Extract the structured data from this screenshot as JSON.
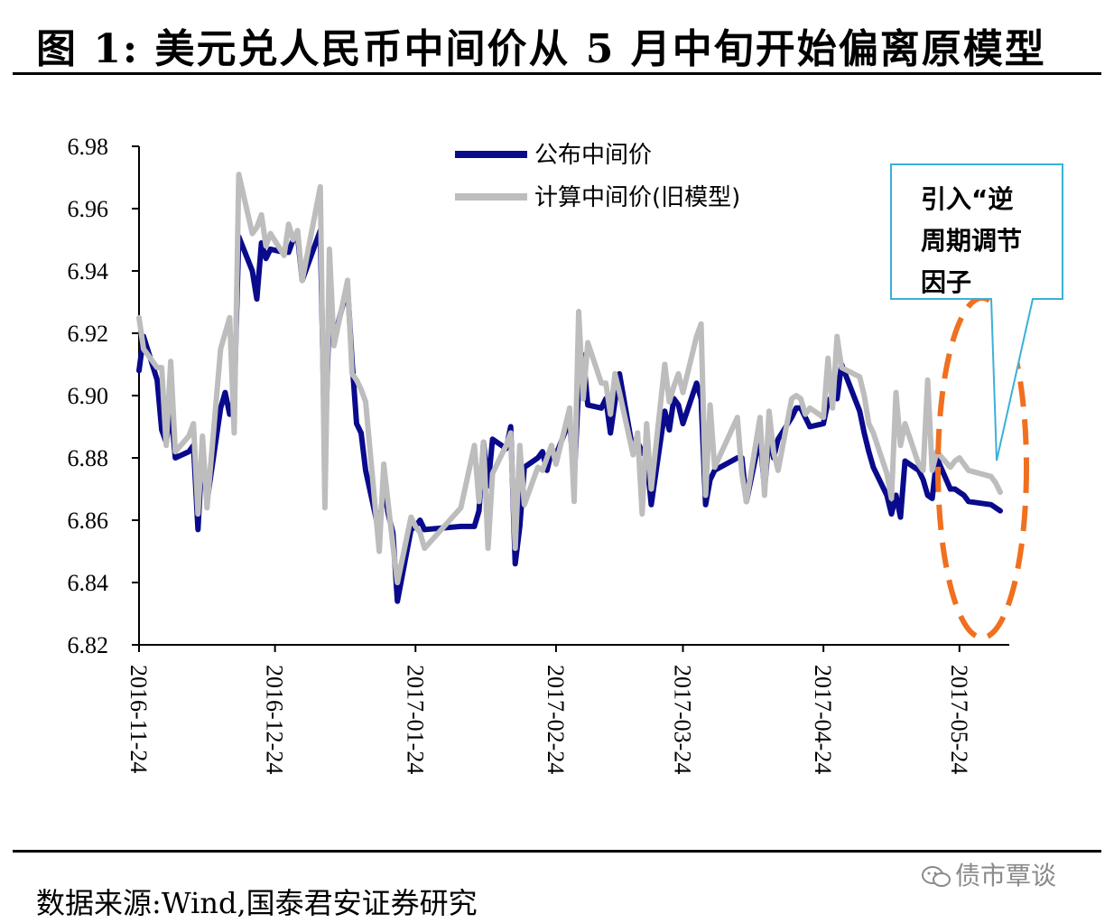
{
  "title": "图 1: 美元兑人民币中间价从 5 月中旬开始偏离原模型",
  "source": "数据来源:Wind,国泰君安证券研究",
  "watermark": "债市覃谈",
  "chart_data": {
    "type": "line",
    "ylim": [
      6.82,
      6.98
    ],
    "yticks": [
      "6.82",
      "6.84",
      "6.86",
      "6.88",
      "6.90",
      "6.92",
      "6.94",
      "6.96",
      "6.98"
    ],
    "xlim": [
      "2016-11-24",
      "2017-06-04"
    ],
    "xticks": [
      "2016-11-24",
      "2016-12-24",
      "2017-01-24",
      "2017-02-24",
      "2017-03-24",
      "2017-04-24",
      "2017-05-24"
    ],
    "legend_position": "top-center",
    "grid": false,
    "annotation": {
      "lines": [
        "引入“逆",
        "周期调节",
        "因子"
      ],
      "box_color": "#3BB0D8",
      "ellipse_color": "#F07020"
    },
    "series": [
      {
        "name": "公布中间价",
        "color": "#0A0A8C",
        "x": [
          "2016-11-24",
          "2016-11-25",
          "2016-11-28",
          "2016-11-29",
          "2016-11-30",
          "2016-12-01",
          "2016-12-02",
          "2016-12-05",
          "2016-12-06",
          "2016-12-07",
          "2016-12-08",
          "2016-12-09",
          "2016-12-12",
          "2016-12-13",
          "2016-12-14",
          "2016-12-15",
          "2016-12-16",
          "2016-12-19",
          "2016-12-20",
          "2016-12-21",
          "2016-12-22",
          "2016-12-23",
          "2016-12-26",
          "2016-12-27",
          "2016-12-28",
          "2016-12-29",
          "2016-12-30",
          "2017-01-03",
          "2017-01-04",
          "2017-01-05",
          "2017-01-06",
          "2017-01-09",
          "2017-01-10",
          "2017-01-11",
          "2017-01-12",
          "2017-01-13",
          "2017-01-16",
          "2017-01-17",
          "2017-01-18",
          "2017-01-19",
          "2017-01-20",
          "2017-01-23",
          "2017-01-24",
          "2017-01-25",
          "2017-01-26",
          "2017-02-03",
          "2017-02-06",
          "2017-02-07",
          "2017-02-08",
          "2017-02-09",
          "2017-02-10",
          "2017-02-13",
          "2017-02-14",
          "2017-02-15",
          "2017-02-16",
          "2017-02-17",
          "2017-02-20",
          "2017-02-21",
          "2017-02-22",
          "2017-02-23",
          "2017-02-24",
          "2017-02-27",
          "2017-02-28",
          "2017-03-01",
          "2017-03-02",
          "2017-03-03",
          "2017-03-06",
          "2017-03-07",
          "2017-03-08",
          "2017-03-09",
          "2017-03-10",
          "2017-03-13",
          "2017-03-14",
          "2017-03-15",
          "2017-03-16",
          "2017-03-17",
          "2017-03-20",
          "2017-03-21",
          "2017-03-22",
          "2017-03-23",
          "2017-03-24",
          "2017-03-27",
          "2017-03-28",
          "2017-03-29",
          "2017-03-30",
          "2017-03-31",
          "2017-04-05",
          "2017-04-06",
          "2017-04-07",
          "2017-04-10",
          "2017-04-11",
          "2017-04-12",
          "2017-04-13",
          "2017-04-14",
          "2017-04-17",
          "2017-04-18",
          "2017-04-19",
          "2017-04-20",
          "2017-04-21",
          "2017-04-24",
          "2017-04-25",
          "2017-04-26",
          "2017-04-27",
          "2017-04-28",
          "2017-05-02",
          "2017-05-03",
          "2017-05-04",
          "2017-05-05",
          "2017-05-08",
          "2017-05-09",
          "2017-05-10",
          "2017-05-11",
          "2017-05-12",
          "2017-05-15",
          "2017-05-16",
          "2017-05-17",
          "2017-05-18",
          "2017-05-19",
          "2017-05-22",
          "2017-05-23",
          "2017-05-24",
          "2017-05-25",
          "2017-05-26",
          "2017-05-31",
          "2017-06-01",
          "2017-06-02"
        ],
        "values": [
          6.908,
          6.919,
          6.905,
          6.889,
          6.885,
          6.896,
          6.88,
          6.882,
          6.884,
          6.857,
          6.884,
          6.866,
          6.896,
          6.901,
          6.894,
          6.899,
          6.951,
          6.94,
          6.931,
          6.949,
          6.944,
          6.947,
          6.946,
          6.946,
          6.95,
          6.951,
          6.937,
          6.953,
          6.88,
          6.93,
          6.918,
          6.935,
          6.911,
          6.891,
          6.888,
          6.876,
          6.856,
          6.872,
          6.862,
          6.856,
          6.834,
          6.857,
          6.858,
          6.86,
          6.857,
          6.858,
          6.858,
          6.863,
          6.885,
          6.871,
          6.886,
          6.883,
          6.89,
          6.846,
          6.858,
          6.877,
          6.88,
          6.882,
          6.876,
          6.882,
          6.881,
          6.892,
          6.873,
          6.903,
          6.913,
          6.897,
          6.896,
          6.899,
          6.888,
          6.898,
          6.907,
          6.882,
          6.885,
          6.882,
          6.88,
          6.865,
          6.895,
          6.889,
          6.899,
          6.897,
          6.891,
          6.904,
          6.899,
          6.865,
          6.873,
          6.876,
          6.88,
          6.88,
          6.866,
          6.887,
          6.87,
          6.887,
          6.88,
          6.886,
          6.893,
          6.896,
          6.896,
          6.893,
          6.89,
          6.891,
          6.898,
          6.9,
          6.899,
          6.91,
          6.895,
          6.888,
          6.882,
          6.877,
          6.868,
          6.862,
          6.868,
          6.861,
          6.879,
          6.876,
          6.873,
          6.868,
          6.867,
          6.88,
          6.87,
          6.87,
          6.869,
          6.868,
          6.866,
          6.865,
          6.864,
          6.863
        ]
      },
      {
        "name": "计算中间价(旧模型)",
        "color": "#BDBDBD",
        "x": [
          "2016-11-24",
          "2016-11-25",
          "2016-11-28",
          "2016-11-29",
          "2016-11-30",
          "2016-12-01",
          "2016-12-02",
          "2016-12-05",
          "2016-12-06",
          "2016-12-07",
          "2016-12-08",
          "2016-12-09",
          "2016-12-12",
          "2016-12-13",
          "2016-12-14",
          "2016-12-15",
          "2016-12-16",
          "2016-12-19",
          "2016-12-20",
          "2016-12-21",
          "2016-12-22",
          "2016-12-23",
          "2016-12-26",
          "2016-12-27",
          "2016-12-28",
          "2016-12-29",
          "2016-12-30",
          "2017-01-03",
          "2017-01-04",
          "2017-01-05",
          "2017-01-06",
          "2017-01-09",
          "2017-01-10",
          "2017-01-11",
          "2017-01-12",
          "2017-01-13",
          "2017-01-16",
          "2017-01-17",
          "2017-01-18",
          "2017-01-19",
          "2017-01-20",
          "2017-01-23",
          "2017-01-24",
          "2017-01-25",
          "2017-01-26",
          "2017-02-03",
          "2017-02-06",
          "2017-02-07",
          "2017-02-08",
          "2017-02-09",
          "2017-02-10",
          "2017-02-13",
          "2017-02-14",
          "2017-02-15",
          "2017-02-16",
          "2017-02-17",
          "2017-02-20",
          "2017-02-21",
          "2017-02-22",
          "2017-02-23",
          "2017-02-24",
          "2017-02-27",
          "2017-02-28",
          "2017-03-01",
          "2017-03-02",
          "2017-03-03",
          "2017-03-06",
          "2017-03-07",
          "2017-03-08",
          "2017-03-09",
          "2017-03-10",
          "2017-03-13",
          "2017-03-14",
          "2017-03-15",
          "2017-03-16",
          "2017-03-17",
          "2017-03-20",
          "2017-03-21",
          "2017-03-22",
          "2017-03-23",
          "2017-03-24",
          "2017-03-27",
          "2017-03-28",
          "2017-03-29",
          "2017-03-30",
          "2017-03-31",
          "2017-04-05",
          "2017-04-06",
          "2017-04-07",
          "2017-04-10",
          "2017-04-11",
          "2017-04-12",
          "2017-04-13",
          "2017-04-14",
          "2017-04-17",
          "2017-04-18",
          "2017-04-19",
          "2017-04-20",
          "2017-04-21",
          "2017-04-24",
          "2017-04-25",
          "2017-04-26",
          "2017-04-27",
          "2017-04-28",
          "2017-05-02",
          "2017-05-03",
          "2017-05-04",
          "2017-05-05",
          "2017-05-08",
          "2017-05-09",
          "2017-05-10",
          "2017-05-11",
          "2017-05-12",
          "2017-05-15",
          "2017-05-16",
          "2017-05-17",
          "2017-05-18",
          "2017-05-19",
          "2017-05-22",
          "2017-05-23",
          "2017-05-24",
          "2017-05-25",
          "2017-05-26",
          "2017-05-31",
          "2017-06-01",
          "2017-06-02"
        ],
        "values": [
          6.925,
          6.915,
          6.909,
          6.909,
          6.884,
          6.911,
          6.882,
          6.887,
          6.891,
          6.862,
          6.887,
          6.864,
          6.915,
          6.92,
          6.925,
          6.888,
          6.971,
          6.952,
          6.954,
          6.958,
          6.948,
          6.952,
          6.945,
          6.955,
          6.95,
          6.953,
          6.937,
          6.967,
          6.864,
          6.947,
          6.916,
          6.937,
          6.907,
          6.905,
          6.902,
          6.898,
          6.85,
          6.878,
          6.865,
          6.852,
          6.84,
          6.861,
          6.858,
          6.856,
          6.851,
          6.864,
          6.884,
          6.866,
          6.885,
          6.851,
          6.875,
          6.884,
          6.888,
          6.851,
          6.884,
          6.865,
          6.877,
          6.876,
          6.88,
          6.884,
          6.878,
          6.896,
          6.866,
          6.927,
          6.899,
          6.917,
          6.904,
          6.904,
          6.894,
          6.907,
          6.901,
          6.881,
          6.888,
          6.862,
          6.891,
          6.87,
          6.91,
          6.898,
          6.903,
          6.907,
          6.901,
          6.919,
          6.923,
          6.868,
          6.897,
          6.877,
          6.893,
          6.875,
          6.866,
          6.893,
          6.868,
          6.895,
          6.882,
          6.876,
          6.899,
          6.9,
          6.899,
          6.894,
          6.896,
          6.893,
          6.912,
          6.896,
          6.919,
          6.909,
          6.906,
          6.9,
          6.891,
          6.888,
          6.875,
          6.867,
          6.901,
          6.884,
          6.891,
          6.878,
          6.876,
          6.905,
          6.876,
          6.882,
          6.877,
          6.879,
          6.88,
          6.878,
          6.876,
          6.874,
          6.872,
          6.869
        ]
      }
    ]
  }
}
